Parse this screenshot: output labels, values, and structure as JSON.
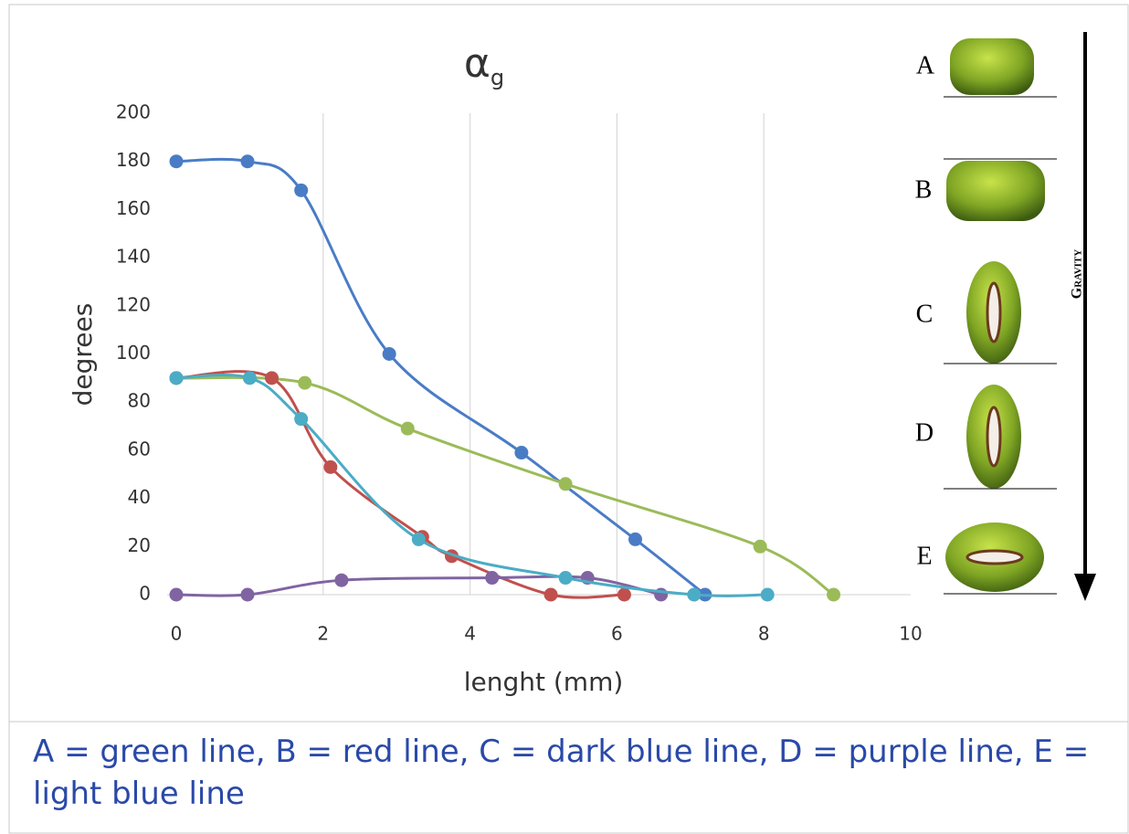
{
  "chart_data": {
    "type": "line",
    "title": {
      "symbol": "α",
      "subscript": "g"
    },
    "x_label": "lenght (mm)",
    "y_label": "degrees",
    "xlim": [
      0,
      10
    ],
    "xticks": [
      0,
      2,
      4,
      6,
      8,
      10
    ],
    "ylim": [
      0,
      200
    ],
    "yticks": [
      0,
      20,
      40,
      60,
      80,
      100,
      120,
      140,
      160,
      180,
      200
    ],
    "grid": "vertical",
    "smooth": true,
    "series": [
      {
        "color": "#4a7cc6",
        "x": [
          0,
          0.97,
          1.7,
          2.9,
          4.7,
          6.25,
          7.2
        ],
        "values": [
          180,
          180,
          168,
          100,
          59,
          23,
          0
        ]
      },
      {
        "color": "#9bbb59",
        "x": [
          0,
          1.75,
          3.15,
          5.3,
          7.95,
          8.95
        ],
        "values": [
          90,
          88,
          69,
          46,
          20,
          0
        ]
      },
      {
        "color": "#c0504d",
        "x": [
          0,
          1.3,
          2.1,
          3.35,
          3.75,
          5.1,
          6.1
        ],
        "values": [
          90,
          90,
          53,
          24,
          16,
          0,
          0
        ]
      },
      {
        "color": "#8064a2",
        "x": [
          0,
          0.97,
          2.25,
          4.3,
          5.6,
          6.6
        ],
        "values": [
          0,
          0,
          6,
          7,
          7,
          0
        ]
      },
      {
        "color": "#4bacc6",
        "x": [
          0,
          1,
          1.7,
          3.3,
          5.3,
          7.05,
          8.05
        ],
        "values": [
          90,
          90,
          73,
          23,
          7,
          0,
          0
        ]
      }
    ]
  },
  "panel": {
    "labels": [
      "A",
      "B",
      "C",
      "D",
      "E"
    ],
    "arrow_label": "Gravity"
  },
  "caption": "A = green line, B = red line, C = dark blue line, D = purple line, E = light blue line"
}
